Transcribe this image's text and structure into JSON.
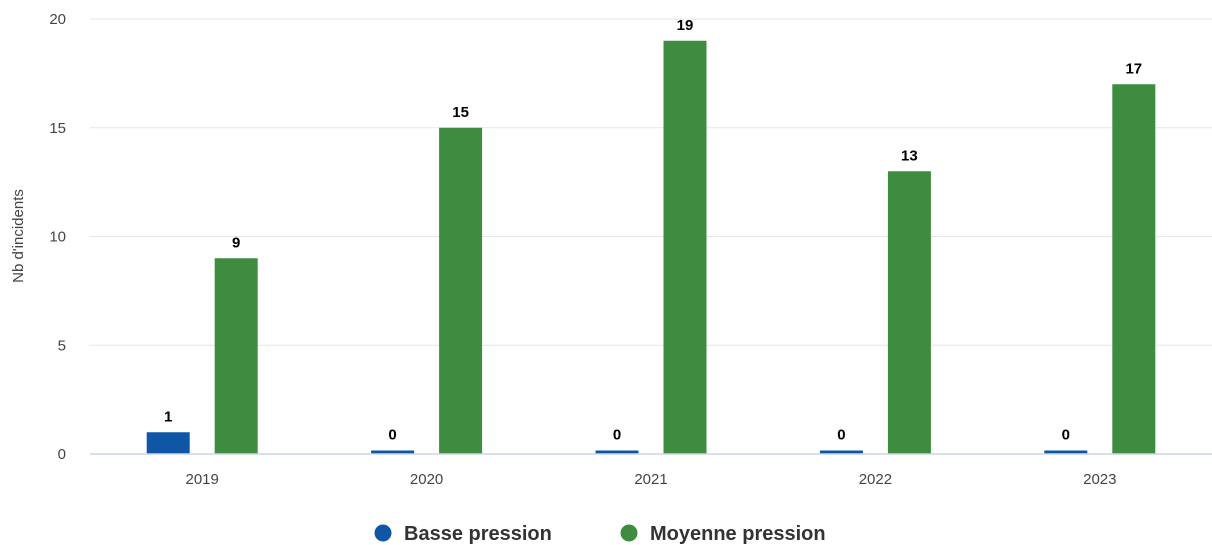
{
  "chart_data": {
    "type": "bar",
    "title": "",
    "xlabel": "",
    "ylabel": "Nb d'incidents",
    "ylim": [
      0,
      20
    ],
    "yticks": [
      "0",
      "5",
      "10",
      "15",
      "20"
    ],
    "categories": [
      "2019",
      "2020",
      "2021",
      "2022",
      "2023"
    ],
    "grid": true,
    "legend_position": "bottom-center",
    "series": [
      {
        "name": "Basse pression",
        "color": "#0f56a6",
        "values": [
          1,
          0,
          0,
          0,
          0
        ]
      },
      {
        "name": "Moyenne pression",
        "color": "#3d8c40",
        "values": [
          9,
          15,
          19,
          13,
          17
        ]
      }
    ]
  }
}
